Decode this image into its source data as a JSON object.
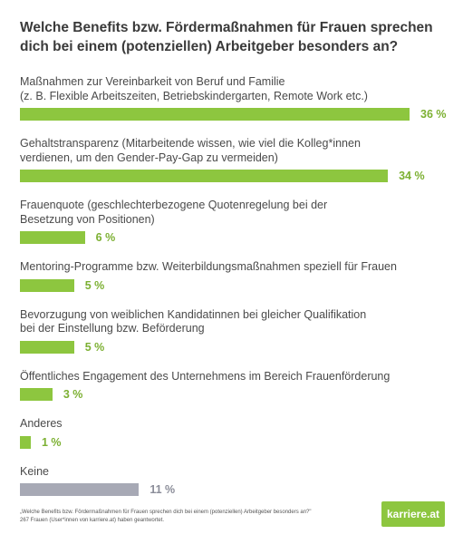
{
  "chart_data": {
    "type": "bar",
    "title": "Welche Benefits bzw. Fördermaßnahmen für Frauen sprechen dich bei einem (potenziellen) Arbeitgeber besonders an?",
    "categories": [
      [
        "Maßnahmen zur Vereinbarkeit von Beruf und Familie",
        "(z. B. Flexible Arbeitszeiten, Betriebskindergarten, Remote Work etc.)"
      ],
      [
        "Gehaltstransparenz (Mitarbeitende wissen, wie viel die Kolleg*innen",
        "verdienen, um den Gender-Pay-Gap zu vermeiden)"
      ],
      [
        "Frauenquote (geschlechterbezogene Quotenregelung bei der",
        "Besetzung von Positionen)"
      ],
      [
        "Mentoring-Programme bzw. Weiterbildungsmaßnahmen speziell für Frauen"
      ],
      [
        "Bevorzugung von weiblichen Kandidatinnen bei gleicher Qualifikation",
        "bei der Einstellung bzw. Beförderung"
      ],
      [
        "Öffentliches Engagement des Unternehmens im Bereich Frauenförderung"
      ],
      [
        "Anderes"
      ],
      [
        "Keine"
      ]
    ],
    "values": [
      36,
      34,
      6,
      5,
      5,
      3,
      1,
      11
    ],
    "value_labels": [
      "36 %",
      "34 %",
      "6 %",
      "5 %",
      "5 %",
      "3 %",
      "1 %",
      "11 %"
    ],
    "colors": [
      "#8dc63f",
      "#8dc63f",
      "#8dc63f",
      "#8dc63f",
      "#8dc63f",
      "#8dc63f",
      "#8dc63f",
      "#a7a9b5"
    ],
    "value_colors": [
      "#7cb032",
      "#7cb032",
      "#7cb032",
      "#7cb032",
      "#7cb032",
      "#7cb032",
      "#7cb032",
      "#8b8d99"
    ],
    "xlim": [
      0,
      36
    ],
    "grid": false,
    "legend": "none"
  },
  "footer": {
    "line1": "„Welche Benefits bzw. Fördermaßnahmen für Frauen sprechen dich bei einem (potenziellen) Arbeitgeber besonders an?\"",
    "line2": "267 Frauen (User*innen von karriere.at) haben geantwortet."
  },
  "logo": {
    "text": "karriere.at"
  }
}
